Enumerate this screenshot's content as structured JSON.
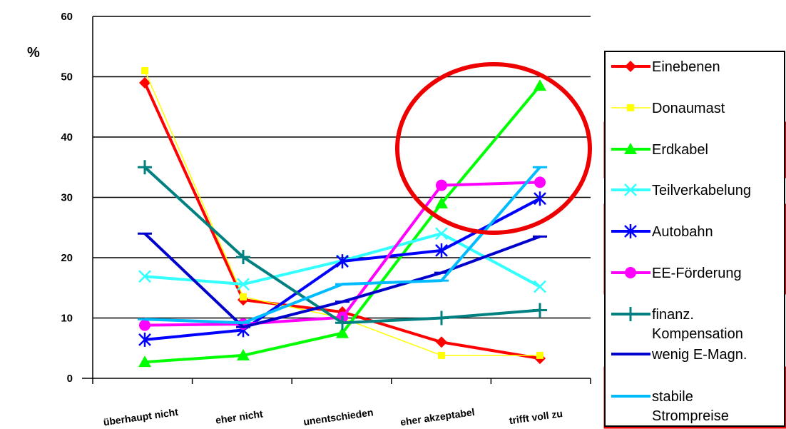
{
  "chart_data": {
    "type": "line",
    "title": "",
    "xlabel": "",
    "ylabel": "%",
    "ylim": [
      0,
      60
    ],
    "yticks": [
      "0",
      "10",
      "20",
      "30",
      "40",
      "50",
      "60"
    ],
    "grid": true,
    "legend": "right",
    "categories": [
      "überhaupt nicht",
      "eher nicht",
      "unentschieden",
      "eher akzeptabel",
      "trifft voll zu"
    ],
    "series": [
      {
        "name": "Einebenen",
        "values": [
          49,
          13,
          11,
          6,
          3.3
        ],
        "color": "#ff0000",
        "marker": "diamond",
        "width": 4
      },
      {
        "name": "Donaumast",
        "values": [
          51,
          13.5,
          10,
          3.8,
          3.8
        ],
        "color": "#ffff00",
        "marker": "square",
        "width": 1.5
      },
      {
        "name": "Erdkabel",
        "values": [
          2.7,
          3.8,
          7.5,
          29,
          48.5
        ],
        "color": "#00ff00",
        "marker": "triangle",
        "width": 4
      },
      {
        "name": "Teilverkabelung",
        "values": [
          16.9,
          15.6,
          19.5,
          24,
          15.2
        ],
        "color": "#33ffff",
        "marker": "x",
        "width": 4
      },
      {
        "name": "Autobahn",
        "values": [
          6.4,
          8,
          19.4,
          21.2,
          29.8
        ],
        "color": "#0000ff",
        "marker": "asterisk",
        "width": 4
      },
      {
        "name": "EE-Förderung",
        "values": [
          8.8,
          9,
          10.1,
          32,
          32.5
        ],
        "color": "#ff00ff",
        "marker": "circle",
        "width": 4
      },
      {
        "name": "finanz. Kompensation",
        "values": [
          35,
          20.1,
          9.2,
          10,
          11.3
        ],
        "color": "#008080",
        "marker": "plus",
        "width": 4
      },
      {
        "name": "wenig E-Magn.",
        "values": [
          24,
          8.5,
          12.7,
          17.5,
          23.5
        ],
        "color": "#0000cc",
        "marker": "dash",
        "width": 4
      },
      {
        "name": "stabile Strompreise",
        "values": [
          9.8,
          9.2,
          15.6,
          16.2,
          35
        ],
        "color": "#00bbff",
        "marker": "dash",
        "width": 4
      }
    ]
  },
  "legend": {
    "items": [
      {
        "lines": [
          "Einebenen"
        ]
      },
      {
        "lines": [
          "Donaumast"
        ]
      },
      {
        "lines": [
          "Erdkabel"
        ]
      },
      {
        "lines": [
          "Teilverkabelung"
        ]
      },
      {
        "lines": [
          "Autobahn"
        ]
      },
      {
        "lines": [
          "EE-Förderung"
        ]
      },
      {
        "lines": [
          "finanz.",
          "Kompensation"
        ]
      },
      {
        "lines": [
          "wenig E-Magn."
        ]
      },
      {
        "lines": [
          "stabile",
          "Strompreise"
        ]
      }
    ]
  },
  "highlight_color": "#ee0000"
}
